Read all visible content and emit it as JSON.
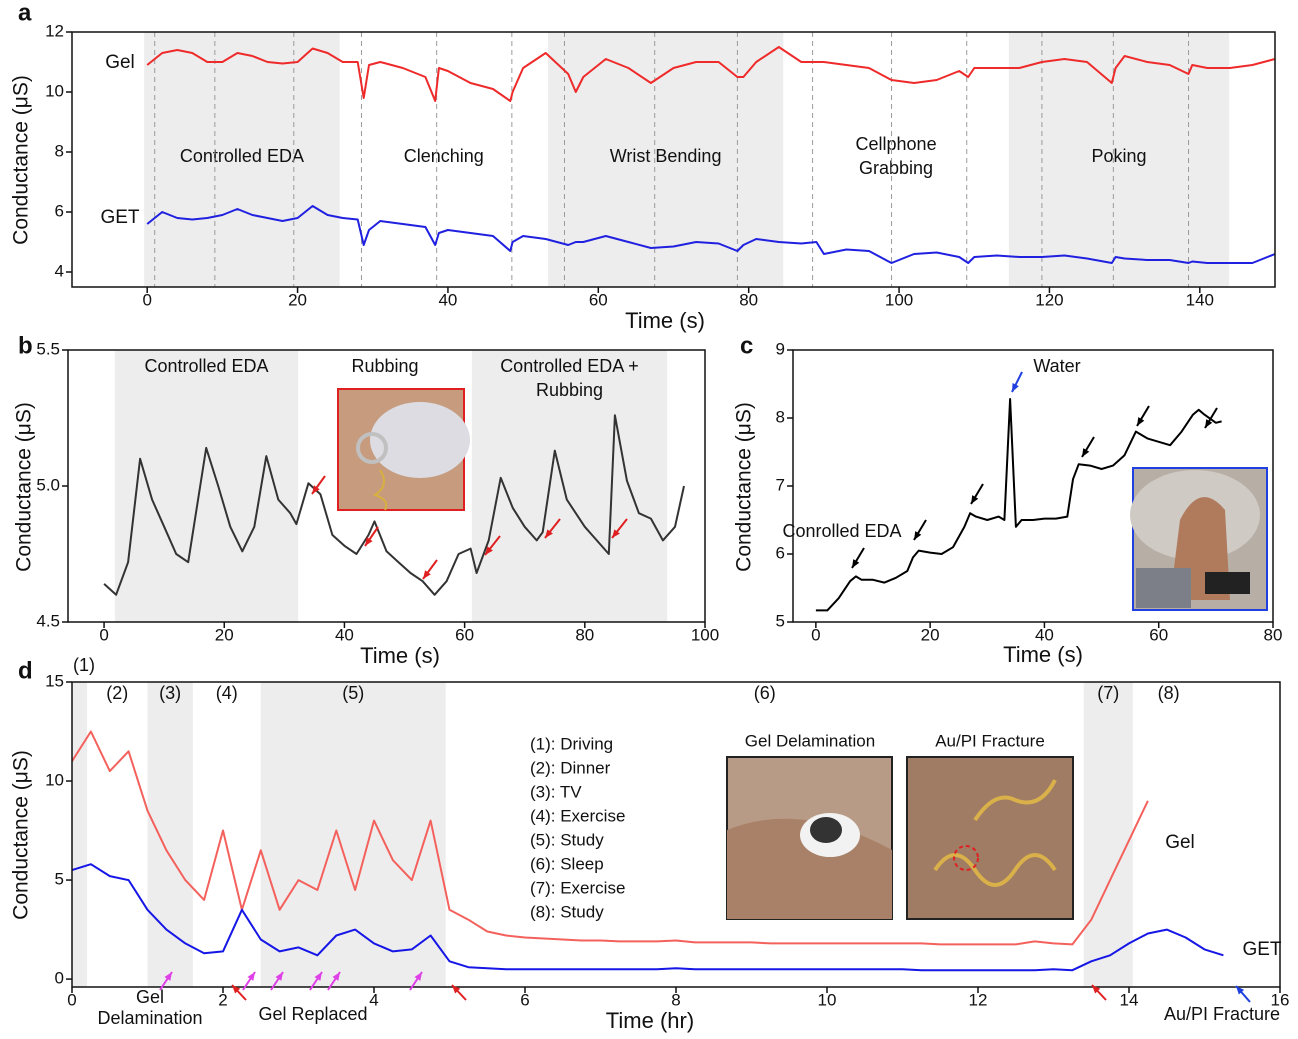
{
  "chart_data": [
    {
      "type": "line",
      "panel": "a",
      "x_label": "Time (s)",
      "y_label": "Conductance (μS)",
      "xlim": [
        -10,
        150
      ],
      "ylim": [
        3.5,
        12
      ],
      "xticks": [
        0,
        20,
        40,
        60,
        80,
        100,
        120,
        140
      ],
      "yticks": [
        4,
        6,
        8,
        10,
        12
      ],
      "regions": [
        {
          "start": -0.4,
          "end": 25.6,
          "shaded": true,
          "lines": [
            "Controlled EDA"
          ]
        },
        {
          "start": 25.6,
          "end": 53.3,
          "shaded": false,
          "lines": [
            "Clenching"
          ]
        },
        {
          "start": 53.3,
          "end": 84.6,
          "shaded": true,
          "lines": [
            "Wrist Bending"
          ]
        },
        {
          "start": 84.6,
          "end": 114.6,
          "shaded": false,
          "lines": [
            "Cellphone",
            "Grabbing"
          ]
        },
        {
          "start": 114.6,
          "end": 143.9,
          "shaded": true,
          "lines": [
            "Poking"
          ]
        }
      ],
      "markers": [
        1,
        9,
        19.5,
        28.5,
        38.5,
        48.5,
        55.5,
        67.5,
        78.5,
        88.5,
        99,
        109,
        119,
        128.5,
        138.5
      ],
      "x": [
        0,
        2,
        4,
        6,
        8,
        10,
        12,
        14,
        16,
        18,
        20,
        22,
        24,
        26,
        28,
        28.8,
        29.5,
        31,
        34,
        37,
        38.3,
        38.8,
        40,
        43,
        46,
        48.3,
        48.6,
        50,
        53,
        56,
        57,
        58,
        61,
        64,
        67,
        70,
        73,
        76,
        78.5,
        79.3,
        81,
        84,
        87,
        89,
        90,
        93,
        96,
        99,
        102,
        105,
        108,
        109.2,
        110,
        113,
        116,
        119,
        122,
        125,
        128.3,
        128.8,
        130,
        133,
        136,
        138.5,
        139,
        141,
        144,
        147,
        150
      ],
      "series": [
        {
          "name": "Gel",
          "color": "#ee2a2a",
          "values": [
            10.9,
            11.3,
            11.4,
            11.3,
            11,
            11,
            11.3,
            11.2,
            11,
            10.95,
            11,
            11.45,
            11.3,
            11,
            11,
            9.8,
            10.9,
            11,
            10.8,
            10.5,
            9.7,
            10.8,
            10.7,
            10.3,
            10.1,
            9.7,
            10,
            10.8,
            11.3,
            10.6,
            10,
            10.5,
            11.1,
            10.8,
            10.3,
            10.8,
            11,
            11,
            10.5,
            10.5,
            11,
            11.5,
            11,
            11,
            11,
            10.9,
            10.8,
            10.4,
            10.3,
            10.4,
            10.7,
            10.5,
            10.8,
            10.8,
            10.8,
            11,
            11.1,
            11,
            10.3,
            10.8,
            11.2,
            11,
            10.9,
            10.6,
            10.9,
            10.8,
            10.8,
            10.9,
            11.1
          ]
        },
        {
          "name": "GET",
          "color": "#2020e0",
          "values": [
            5.6,
            6,
            5.8,
            5.75,
            5.8,
            5.9,
            6.1,
            5.9,
            5.8,
            5.7,
            5.8,
            6.2,
            5.9,
            5.8,
            5.75,
            4.9,
            5.4,
            5.7,
            5.6,
            5.5,
            4.9,
            5.3,
            5.4,
            5.3,
            5.2,
            4.7,
            5,
            5.2,
            5.1,
            4.9,
            5,
            5,
            5.2,
            5,
            4.8,
            4.85,
            5,
            4.95,
            4.7,
            4.9,
            5.1,
            5,
            4.95,
            5,
            4.6,
            4.75,
            4.7,
            4.3,
            4.6,
            4.65,
            4.5,
            4.3,
            4.5,
            4.55,
            4.5,
            4.5,
            4.55,
            4.45,
            4.3,
            4.5,
            4.45,
            4.4,
            4.4,
            4.3,
            4.35,
            4.3,
            4.3,
            4.3,
            4.6
          ]
        }
      ]
    },
    {
      "type": "line",
      "panel": "b",
      "x_label": "Time (s)",
      "y_label": "Conductance (μS)",
      "xlim": [
        -6,
        100
      ],
      "ylim": [
        4.5,
        5.5
      ],
      "xticks": [
        0,
        20,
        40,
        60,
        80,
        100
      ],
      "yticks": [
        4.5,
        {
          "value": 5,
          "label": "5.0"
        },
        5.5
      ],
      "regions": [
        {
          "start": 1.8,
          "end": 32.3,
          "shaded": true,
          "lines": [
            "Controlled EDA"
          ]
        },
        {
          "start": 32.3,
          "end": 61.2,
          "shaded": false,
          "lines": [
            "Rubbing"
          ],
          "line_colors": [
            "#e02020"
          ]
        },
        {
          "start": 61.2,
          "end": 93.7,
          "shaded": true,
          "lines": [
            "Controlled EDA +",
            "Rubbing"
          ],
          "line_colors": [
            "#222222",
            "#e02020"
          ]
        }
      ],
      "x": [
        0,
        2,
        4,
        6,
        8,
        10,
        12,
        14,
        16,
        17,
        19,
        21,
        23,
        25,
        27,
        29,
        31,
        32,
        34,
        36,
        38,
        40,
        42,
        44,
        45,
        47,
        49,
        51,
        53,
        55,
        57,
        59,
        61,
        62,
        64,
        66,
        68,
        70,
        72,
        73,
        75,
        77,
        80,
        82,
        84,
        85,
        87,
        89,
        91,
        93,
        95,
        96.5
      ],
      "series": [
        {
          "color": "#333333",
          "values": [
            4.64,
            4.6,
            4.72,
            5.1,
            4.95,
            4.85,
            4.75,
            4.72,
            5,
            5.14,
            5,
            4.85,
            4.76,
            4.85,
            5.11,
            4.95,
            4.9,
            4.86,
            5.01,
            4.97,
            4.82,
            4.78,
            4.75,
            4.82,
            4.87,
            4.76,
            4.72,
            4.68,
            4.65,
            4.6,
            4.65,
            4.75,
            4.77,
            4.68,
            4.8,
            5.03,
            4.92,
            4.85,
            4.8,
            4.83,
            5.13,
            4.95,
            4.85,
            4.8,
            4.75,
            5.26,
            5.02,
            4.9,
            4.88,
            4.8,
            4.85,
            5
          ]
        }
      ]
    },
    {
      "type": "line",
      "panel": "c",
      "x_label": "Time (s)",
      "y_label": "Conductance (μS)",
      "xlim": [
        -4,
        80
      ],
      "ylim": [
        5,
        9
      ],
      "xticks": [
        0,
        20,
        40,
        60,
        80
      ],
      "yticks": [
        5,
        6,
        7,
        8,
        9
      ],
      "annotations": [
        {
          "lines": [
            "Water"
          ],
          "color": "#2040e0"
        },
        {
          "lines": [
            "Conrolled EDA"
          ],
          "color": "#000000"
        }
      ],
      "x": [
        0,
        2,
        4,
        6,
        7,
        8,
        10,
        12,
        14,
        16,
        17,
        18,
        20,
        22,
        24,
        26,
        27,
        28,
        30,
        32,
        33,
        34,
        35,
        36,
        38,
        40,
        42,
        44,
        45,
        46,
        48,
        50,
        52,
        54,
        56,
        57,
        58,
        60,
        62,
        64,
        66,
        67,
        68,
        70,
        71
      ],
      "series": [
        {
          "color": "#000000",
          "values": [
            5.17,
            5.17,
            5.35,
            5.6,
            5.67,
            5.62,
            5.62,
            5.58,
            5.65,
            5.75,
            5.95,
            6.05,
            6.02,
            6,
            6.1,
            6.4,
            6.6,
            6.55,
            6.5,
            6.55,
            6.5,
            8.28,
            6.4,
            6.5,
            6.5,
            6.52,
            6.52,
            6.55,
            7.1,
            7.32,
            7.3,
            7.25,
            7.3,
            7.45,
            7.8,
            7.75,
            7.7,
            7.65,
            7.6,
            7.8,
            8.05,
            8.12,
            8.05,
            7.93,
            7.95
          ]
        }
      ]
    },
    {
      "type": "line",
      "panel": "d",
      "x_label": "Time (hr)",
      "y_label": "Conductance (μS)",
      "xlim": [
        0,
        16
      ],
      "ylim": [
        -0.4,
        15
      ],
      "xticks": [
        0,
        2,
        4,
        6,
        8,
        10,
        12,
        14,
        16
      ],
      "yticks": [
        0,
        5,
        10,
        15
      ],
      "regions": [
        {
          "start": 0,
          "end": 0.2,
          "shaded": true,
          "lines": [
            "(1)"
          ]
        },
        {
          "start": 0.2,
          "end": 1,
          "shaded": false,
          "lines": [
            "(2)"
          ]
        },
        {
          "start": 1,
          "end": 1.6,
          "shaded": true,
          "lines": [
            "(3)"
          ]
        },
        {
          "start": 1.6,
          "end": 2.5,
          "shaded": false,
          "lines": [
            "(4)"
          ]
        },
        {
          "start": 2.5,
          "end": 4.95,
          "shaded": true,
          "lines": [
            "(5)"
          ]
        },
        {
          "start": 4.95,
          "end": 13.4,
          "shaded": false,
          "lines": [
            "(6)"
          ]
        },
        {
          "start": 13.4,
          "end": 14.05,
          "shaded": true,
          "lines": [
            "(7)"
          ]
        },
        {
          "start": 14.05,
          "end": 15,
          "shaded": false,
          "lines": [
            "(8)"
          ]
        }
      ],
      "activity_list": [
        "(1): Driving",
        "(2): Dinner",
        "(3): TV",
        "(4): Exercise",
        "(5): Study",
        "(6): Sleep",
        "(7): Exercise",
        "(8): Study"
      ],
      "inset_labels": [
        {
          "text": "Gel Delamination",
          "color": "#e040e8"
        },
        {
          "text": "Au/PI Fracture",
          "color": "#2040e0"
        }
      ],
      "annotations": [
        {
          "lines": [
            "Gel",
            "Delamination"
          ],
          "color": "#e040e8"
        },
        {
          "lines": [
            "Gel Replaced"
          ],
          "color": "#e02020"
        },
        {
          "lines": [
            "Au/PI Fracture"
          ],
          "color": "#2040e0"
        }
      ],
      "x": [
        0,
        0.25,
        0.5,
        0.75,
        1,
        1.25,
        1.5,
        1.75,
        2,
        2.25,
        2.5,
        2.75,
        3,
        3.25,
        3.5,
        3.75,
        4,
        4.25,
        4.5,
        4.75,
        5,
        5.25,
        5.5,
        5.75,
        6,
        6.25,
        6.5,
        6.75,
        7,
        7.25,
        7.5,
        7.75,
        8,
        8.25,
        8.5,
        8.75,
        9,
        9.25,
        9.5,
        9.75,
        10,
        10.25,
        10.5,
        10.75,
        11,
        11.25,
        11.5,
        11.75,
        12,
        12.25,
        12.5,
        12.75,
        13,
        13.25,
        13.5,
        13.75,
        14,
        14.25,
        14.5,
        14.75,
        15,
        15.25,
        15.5
      ],
      "series": [
        {
          "name": "Gel",
          "color": "#f4615c",
          "values": [
            11,
            12.5,
            10.5,
            11.5,
            8.5,
            6.5,
            5,
            4,
            7.5,
            3.5,
            6.5,
            3.5,
            5,
            4.5,
            7.5,
            4.5,
            8,
            6,
            5,
            8,
            3.5,
            3,
            2.4,
            2.2,
            2.1,
            2.05,
            2,
            1.95,
            1.95,
            1.9,
            1.9,
            1.9,
            1.95,
            1.85,
            1.85,
            1.85,
            1.85,
            1.8,
            1.8,
            1.8,
            1.8,
            1.8,
            1.8,
            1.8,
            1.8,
            1.8,
            1.75,
            1.75,
            1.75,
            1.75,
            1.75,
            1.9,
            1.8,
            1.75,
            3,
            5,
            7,
            9,
            null,
            null,
            null,
            null,
            null
          ]
        },
        {
          "name": "GET",
          "color": "#1616e6",
          "values": [
            5.5,
            5.8,
            5.2,
            5,
            3.5,
            2.5,
            1.8,
            1.3,
            1.4,
            3.5,
            2,
            1.4,
            1.6,
            1.2,
            2.2,
            2.5,
            1.8,
            1.4,
            1.5,
            2.2,
            0.9,
            0.6,
            0.55,
            0.5,
            0.5,
            0.5,
            0.5,
            0.5,
            0.5,
            0.5,
            0.5,
            0.5,
            0.55,
            0.5,
            0.5,
            0.5,
            0.5,
            0.5,
            0.5,
            0.5,
            0.5,
            0.5,
            0.5,
            0.5,
            0.5,
            0.45,
            0.45,
            0.45,
            0.45,
            0.45,
            0.45,
            0.45,
            0.5,
            0.45,
            0.9,
            1.2,
            1.8,
            2.3,
            2.5,
            2.1,
            1.5,
            1.2,
            null
          ]
        }
      ]
    }
  ]
}
